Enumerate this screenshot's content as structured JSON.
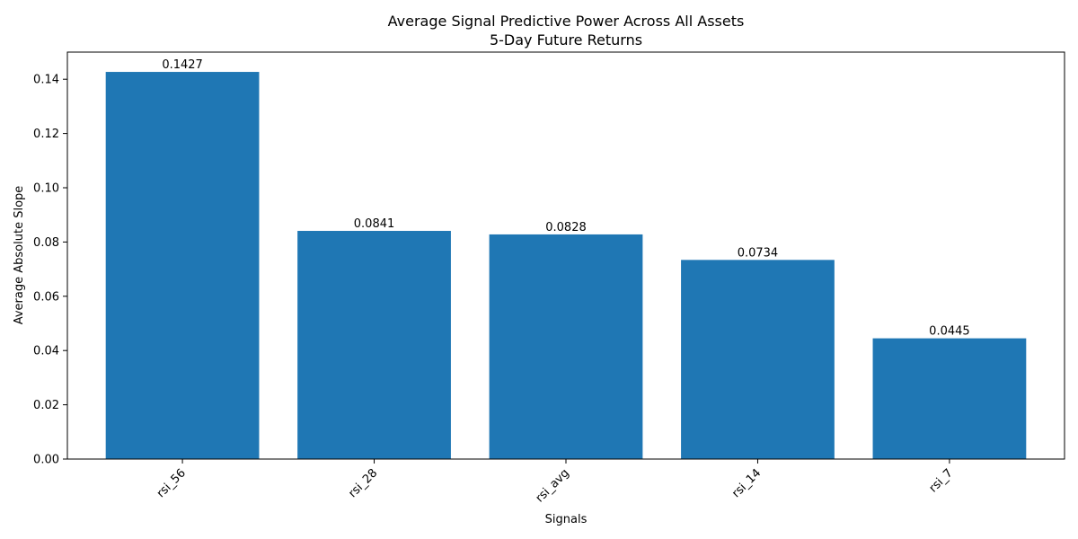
{
  "chart_data": {
    "type": "bar",
    "title": "Average Signal Predictive Power Across All Assets",
    "subtitle": "5-Day Future Returns",
    "xlabel": "Signals",
    "ylabel": "Average Absolute Slope",
    "categories": [
      "rsi_56",
      "rsi_28",
      "rsi_avg",
      "rsi_14",
      "rsi_7"
    ],
    "values": [
      0.1427,
      0.0841,
      0.0828,
      0.0734,
      0.0445
    ],
    "data_labels": [
      "0.1427",
      "0.0841",
      "0.0828",
      "0.0734",
      "0.0445"
    ],
    "ylim": [
      0,
      0.15
    ],
    "yticks": [
      "0.00",
      "0.02",
      "0.04",
      "0.06",
      "0.08",
      "0.10",
      "0.12",
      "0.14"
    ],
    "bar_color": "#1f77b4",
    "grid": false,
    "legend": "none"
  }
}
